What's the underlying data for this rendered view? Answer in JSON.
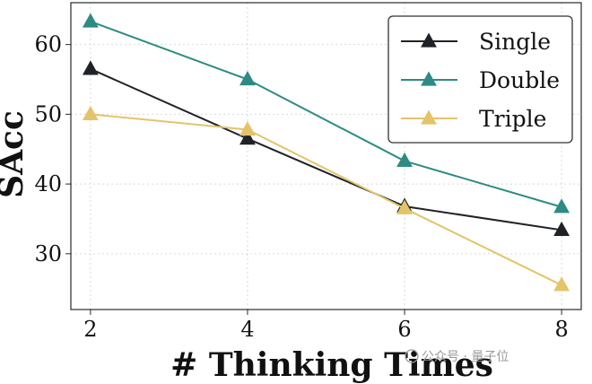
{
  "chart_data": {
    "type": "line",
    "title": "",
    "xlabel": "# Thinking Times",
    "ylabel": "SAcc",
    "x": [
      2,
      4,
      6,
      8
    ],
    "xlim": [
      1.75,
      8.25
    ],
    "ylim": [
      22,
      66
    ],
    "yticks": [
      30,
      40,
      50,
      60
    ],
    "grid": true,
    "legend_position": "top-right",
    "series": [
      {
        "name": "Single",
        "values": [
          56.5,
          46.5,
          36.8,
          33.4
        ],
        "color": "#1f2328",
        "marker": "triangle"
      },
      {
        "name": "Double",
        "values": [
          63.3,
          55.0,
          43.3,
          36.7
        ],
        "color": "#2e8b83",
        "marker": "triangle"
      },
      {
        "name": "Triple",
        "values": [
          50.0,
          47.8,
          36.5,
          25.5
        ],
        "color": "#e3c46a",
        "marker": "triangle"
      }
    ]
  },
  "watermark": {
    "text": "公众号 · 量子位"
  }
}
